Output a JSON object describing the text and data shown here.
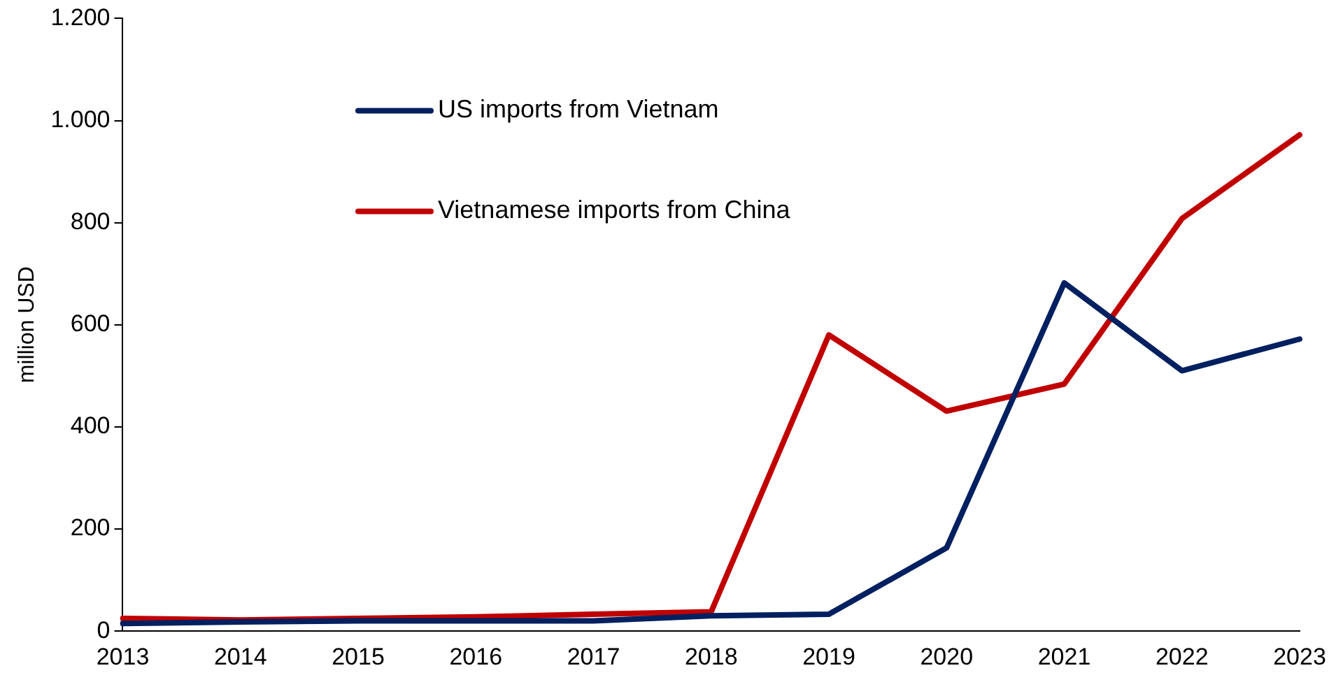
{
  "chart_data": {
    "type": "line",
    "ylabel": "million USD",
    "categories": [
      "2013",
      "2014",
      "2015",
      "2016",
      "2017",
      "2018",
      "2019",
      "2020",
      "2021",
      "2022",
      "2023"
    ],
    "series": [
      {
        "name": "US imports from Vietnam",
        "color": "#002060",
        "values": [
          15,
          18,
          20,
          20,
          20,
          30,
          33,
          163,
          682,
          510,
          572
        ]
      },
      {
        "name": "Vietnamese imports from China",
        "color": "#c00000",
        "values": [
          25,
          22,
          25,
          28,
          33,
          38,
          580,
          431,
          484,
          808,
          972
        ]
      }
    ],
    "ylim": [
      0,
      1200
    ],
    "yticks": [
      0,
      200,
      400,
      600,
      800,
      {
        "value": 1000,
        "label": "1.000"
      },
      {
        "value": 1200,
        "label": "1.200"
      }
    ],
    "grid": false,
    "legend": "top",
    "marker": "none",
    "line_style": "solid"
  }
}
